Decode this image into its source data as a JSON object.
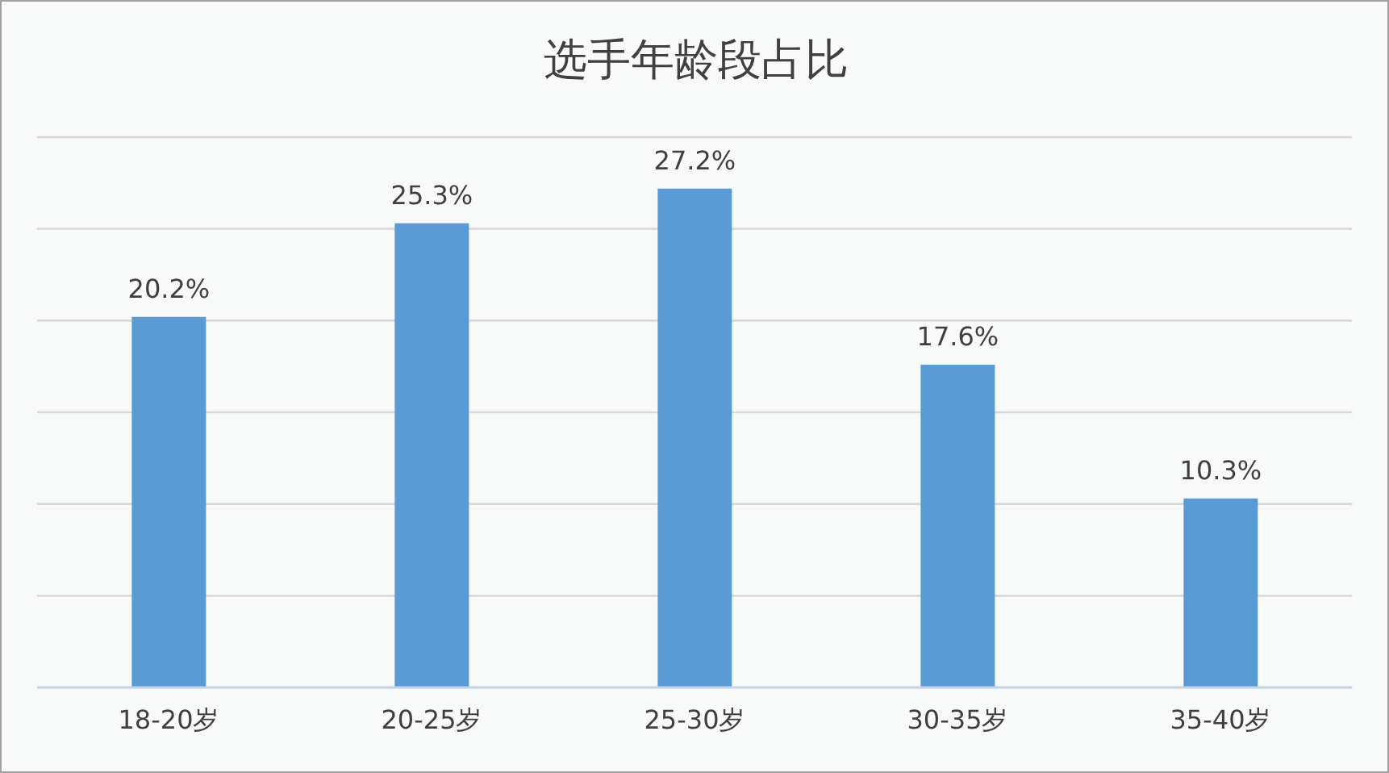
{
  "chart_data": {
    "type": "bar",
    "title": "选手年龄段占比",
    "categories": [
      "18-20岁",
      "20-25岁",
      "25-30岁",
      "30-35岁",
      "35-40岁"
    ],
    "values": [
      20.2,
      25.3,
      27.2,
      17.6,
      10.3
    ],
    "value_labels": [
      "20.2%",
      "25.3%",
      "27.2%",
      "17.6%",
      "10.3%"
    ],
    "color": "#5b9bd5",
    "ylim": [
      0,
      30
    ],
    "grid": "y",
    "tick_labels": "x",
    "legend": false
  }
}
